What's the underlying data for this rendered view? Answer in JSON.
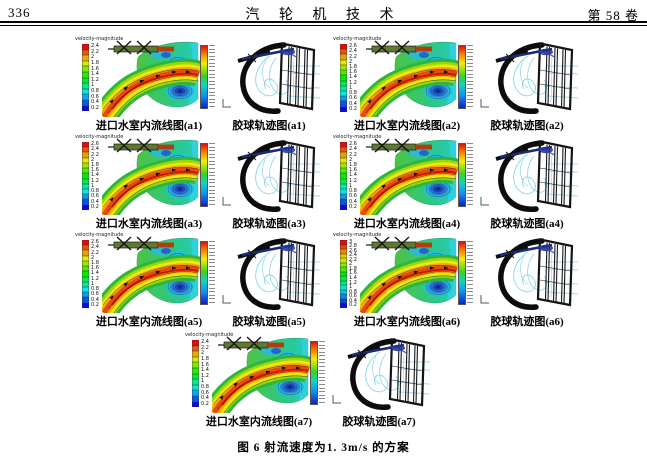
{
  "header": {
    "page_number": "336",
    "journal_title": "汽 轮 机 技 术",
    "volume": "第 58 卷"
  },
  "figure_caption": "图 6  射流速度为1. 3m/s 的方案",
  "colorbar_label": "velocity-magnitude",
  "traj_colorbar_tick_count": 18,
  "palette_top_color": "#e01010",
  "palette_bottom_color": "#1020c0",
  "pairs": [
    {
      "id": "a1",
      "flow_caption": "进口水室内流线图(a1)",
      "traj_caption": "胶球轨迹图(a1)",
      "ticks": [
        "2.4",
        "2.2",
        "2",
        "1.8",
        "1.6",
        "1.4",
        "1.2",
        "1",
        "0.8",
        "0.6",
        "0.4",
        "0.2"
      ]
    },
    {
      "id": "a2",
      "flow_caption": "进口水室内流线图(a2)",
      "traj_caption": "胶球轨迹图(a2)",
      "ticks": [
        "2.6",
        "2.4",
        "2.2",
        "2",
        "1.8",
        "1.6",
        "1.4",
        "1.2",
        "1",
        "0.8",
        "0.6",
        "0.4",
        "0.2"
      ]
    },
    {
      "id": "a3",
      "flow_caption": "进口水室内流线图(a3)",
      "traj_caption": "胶球轨迹图(a3)",
      "ticks": [
        "2.6",
        "2.4",
        "2.2",
        "2",
        "1.8",
        "1.6",
        "1.4",
        "1.2",
        "1",
        "0.8",
        "0.6",
        "0.4",
        "0.2"
      ]
    },
    {
      "id": "a4",
      "flow_caption": "进口水室内流线图(a4)",
      "traj_caption": "胶球轨迹图(a4)",
      "ticks": [
        "2.6",
        "2.4",
        "2.2",
        "2",
        "1.8",
        "1.6",
        "1.4",
        "1.2",
        "1",
        "0.8",
        "0.6",
        "0.4",
        "0.2"
      ]
    },
    {
      "id": "a5",
      "flow_caption": "进口水室内流线图(a5)",
      "traj_caption": "胶球轨迹图(a5)",
      "ticks": [
        "2.6",
        "2.4",
        "2.2",
        "2",
        "1.8",
        "1.6",
        "1.4",
        "1.2",
        "1",
        "0.8",
        "0.6",
        "0.4",
        "0.2"
      ]
    },
    {
      "id": "a6",
      "flow_caption": "进口水室内流线图(a6)",
      "traj_caption": "胶球轨迹图(a6)",
      "ticks": [
        "3",
        "2.8",
        "2.6",
        "2.4",
        "2.2",
        "2",
        "1.8",
        "1.6",
        "1.4",
        "1.2",
        "1",
        "0.8",
        "0.6",
        "0.4",
        "0.2"
      ]
    },
    {
      "id": "a7",
      "flow_caption": "进口水室内流线图(a7)",
      "traj_caption": "胶球轨迹图(a7)",
      "ticks": [
        "2.4",
        "2.2",
        "2",
        "1.8",
        "1.6",
        "1.4",
        "1.2",
        "1",
        "0.8",
        "0.6",
        "0.4",
        "0.2"
      ]
    }
  ]
}
